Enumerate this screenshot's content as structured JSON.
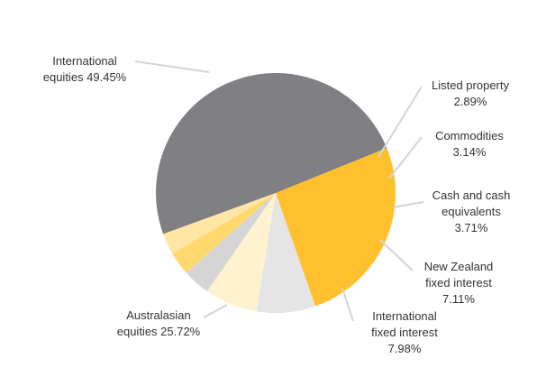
{
  "chart_data": {
    "type": "pie",
    "slices": [
      {
        "name": "International equities",
        "value": 49.45,
        "color": "#807f83",
        "label": [
          "International",
          "equities 49.45%"
        ]
      },
      {
        "name": "Listed property",
        "value": 2.89,
        "color": "#ffe6a4",
        "label": [
          "Listed property",
          "2.89%"
        ]
      },
      {
        "name": "Commodities",
        "value": 3.14,
        "color": "#ffd96e",
        "label": [
          "Commodities",
          "3.14%"
        ]
      },
      {
        "name": "Cash and cash equivalents",
        "value": 3.71,
        "color": "#d5d5d6",
        "label": [
          "Cash and cash",
          "equivalents",
          "3.71%"
        ]
      },
      {
        "name": "New Zealand fixed interest",
        "value": 7.11,
        "color": "#fff2cf",
        "label": [
          "New Zealand",
          "fixed interest",
          "7.11%"
        ]
      },
      {
        "name": "International fixed interest",
        "value": 7.98,
        "color": "#e5e5e5",
        "label": [
          "International",
          "fixed interest",
          "7.98%"
        ]
      },
      {
        "name": "Australasian equities",
        "value": 25.72,
        "color": "#ffc02d",
        "label": [
          "Australasian",
          "equities 25.72%"
        ]
      }
    ]
  }
}
